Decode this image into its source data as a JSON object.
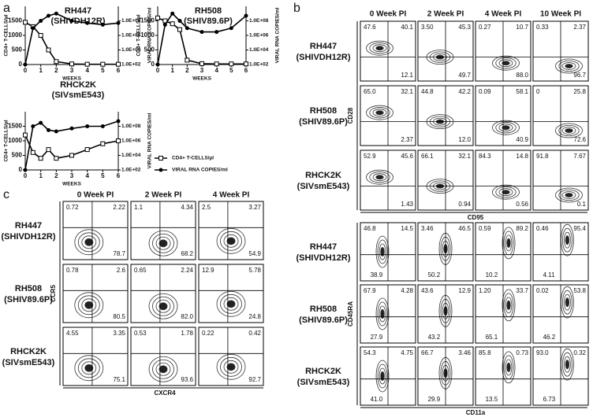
{
  "panel_labels": [
    "a",
    "b",
    "c"
  ],
  "chart_data": [
    {
      "type": "line",
      "title": "RH447",
      "subtitle": "(SHIVDH12R)",
      "xlabel": "WEEKS",
      "ylabel": "CD4+ T-CELLS/µl",
      "y2label": "VIRAL RNA COPIES/ml",
      "x": [
        0,
        0.5,
        1,
        1.5,
        2,
        3,
        4,
        5,
        6
      ],
      "xlim": [
        0,
        6
      ],
      "xticks": [
        0,
        1,
        2,
        3,
        4,
        5,
        6
      ],
      "ylim": [
        0,
        2000
      ],
      "yticks": [
        0,
        500,
        1000,
        1500
      ],
      "y2lim": [
        100,
        10000000000
      ],
      "y2log": true,
      "y2ticks": [
        {
          "value": 100,
          "label": "1.0E+02"
        },
        {
          "value": 10000,
          "label": "1.0E+04"
        },
        {
          "value": 1000000,
          "label": "1.0E+06"
        },
        {
          "value": 100000000,
          "label": "1.0E+08"
        }
      ],
      "series": [
        {
          "marker": "open-square",
          "color": "#000000",
          "values": [
            1450,
            1300,
            1000,
            500,
            100,
            20,
            10,
            10,
            10
          ]
        },
        {
          "marker": "filled-circle",
          "color": "#000000",
          "axis": "y2",
          "values": [
            100,
            10000000,
            100000000,
            500000000,
            1000000000,
            100000000,
            50000000,
            30000000,
            50000000
          ]
        }
      ]
    },
    {
      "type": "line",
      "title": "RH508",
      "subtitle": "(SHIV89.6P)",
      "xlabel": "WEEKS",
      "ylabel": "CD4+ T-CELLS/µl",
      "y2label": "VIRAL RNA COPIES/ml",
      "x": [
        0,
        0.5,
        1,
        1.5,
        2,
        3,
        4,
        5,
        6
      ],
      "xlim": [
        0,
        6
      ],
      "xticks": [
        0,
        1,
        2,
        3,
        4,
        5,
        6
      ],
      "ylim": [
        0,
        2000
      ],
      "yticks": [
        0,
        500,
        1000,
        1500
      ],
      "y2lim": [
        100,
        10000000000
      ],
      "y2log": true,
      "y2ticks": [
        {
          "value": 100,
          "label": "1.0E+02"
        },
        {
          "value": 10000,
          "label": "1.0E+04"
        },
        {
          "value": 1000000,
          "label": "1.0E+06"
        },
        {
          "value": 100000000,
          "label": "1.0E+08"
        }
      ],
      "series": [
        {
          "marker": "open-square",
          "color": "#000000",
          "values": [
            1600,
            1500,
            1400,
            1200,
            150,
            30,
            20,
            20,
            20
          ]
        },
        {
          "marker": "filled-circle",
          "color": "#000000",
          "axis": "y2",
          "values": [
            100,
            30000000,
            1000000000,
            100000000,
            10000000,
            3000000,
            3000000,
            10000000,
            500000000
          ]
        }
      ]
    },
    {
      "type": "line",
      "title": "RHCK2K",
      "subtitle": "(SIVsmE543)",
      "xlabel": "WEEKS",
      "ylabel": "CD4+ T-CELLS/µl",
      "y2label": "VIRAL RNA COPIES/ml",
      "x": [
        0,
        0.5,
        1,
        1.5,
        2,
        3,
        4,
        5,
        6
      ],
      "xlim": [
        0,
        6
      ],
      "xticks": [
        0,
        1,
        2,
        3,
        4,
        5,
        6
      ],
      "ylim": [
        0,
        2000
      ],
      "yticks": [
        0,
        500,
        1000,
        1500
      ],
      "y2lim": [
        100,
        10000000000
      ],
      "y2log": true,
      "y2ticks": [
        {
          "value": 100,
          "label": "1.0E+02"
        },
        {
          "value": 10000,
          "label": "1.0E+04"
        },
        {
          "value": 1000000,
          "label": "1.0E+06"
        },
        {
          "value": 100000000,
          "label": "1.0E+08"
        }
      ],
      "series": [
        {
          "name": "CD4+ T-CELLS/µl",
          "marker": "open-square",
          "color": "#000000",
          "values": [
            1200,
            600,
            400,
            700,
            400,
            500,
            700,
            900,
            1000
          ]
        },
        {
          "name": "VIRAL RNA COPIES/ml",
          "marker": "filled-circle",
          "color": "#000000",
          "axis": "y2",
          "values": [
            100,
            100000000,
            300000000,
            30000000,
            20000000,
            50000000,
            100000000,
            100000000,
            500000000
          ]
        }
      ]
    }
  ],
  "flow_b_top": {
    "xlabel": "CD95",
    "ylabel": "CD28",
    "columns": [
      "0 Week PI",
      "2 Week PI",
      "4 Week PI",
      "10 Week PI"
    ],
    "rows": [
      {
        "name": "RH447",
        "virus": "(SHIVDH12R)",
        "cells": [
          {
            "ul": "47.6",
            "ur": "40.1",
            "lr": "12.1"
          },
          {
            "ul": "3.50",
            "ur": "45.3",
            "lr": "49.7"
          },
          {
            "ul": "0.27",
            "ur": "10.7",
            "lr": "88.0"
          },
          {
            "ul": "0.33",
            "ur": "2.37",
            "lr": "96.7"
          }
        ]
      },
      {
        "name": "RH508",
        "virus": "(SHIV89.6P)",
        "cells": [
          {
            "ul": "65.0",
            "ur": "32.1",
            "lr": "2.37"
          },
          {
            "ul": "44.8",
            "ur": "42.2",
            "lr": "12.0"
          },
          {
            "ul": "0.09",
            "ur": "58.1",
            "lr": "40.9"
          },
          {
            "ul": "0",
            "ur": "25.8",
            "lr": "72.6"
          }
        ]
      },
      {
        "name": "RHCK2K",
        "virus": "(SIVsmE543)",
        "cells": [
          {
            "ul": "52.9",
            "ur": "45.6",
            "lr": "1.43"
          },
          {
            "ul": "66.1",
            "ur": "32.1",
            "lr": "0.94"
          },
          {
            "ul": "84.3",
            "ur": "14.8",
            "lr": "0.56"
          },
          {
            "ul": "91.8",
            "ur": "7.67",
            "lr": "0.1"
          }
        ]
      }
    ]
  },
  "flow_b_bottom": {
    "xlabel": "CD11a",
    "ylabel": "CD45RA",
    "rows": [
      {
        "name": "RH447",
        "virus": "(SHIVDH12R)",
        "cells": [
          {
            "ul": "46.8",
            "ur": "14.5",
            "ll": "38.9"
          },
          {
            "ul": "3.46",
            "ur": "46.5",
            "ll": "50.2"
          },
          {
            "ul": "0.59",
            "ur": "89.2",
            "ll": "10.2"
          },
          {
            "ul": "0.46",
            "ur": "95.4",
            "ll": "4.11"
          }
        ]
      },
      {
        "name": "RH508",
        "virus": "(SHIV89.6P)",
        "cells": [
          {
            "ul": "67.9",
            "ur": "4.28",
            "ll": "27.9"
          },
          {
            "ul": "43.6",
            "ur": "12.9",
            "ll": "43.2"
          },
          {
            "ul": "1.20",
            "ur": "33.7",
            "ll": "65.1"
          },
          {
            "ul": "0.02",
            "ur": "53.8",
            "ll": "46.2"
          }
        ]
      },
      {
        "name": "RHCK2K",
        "virus": "(SIVsmE543)",
        "cells": [
          {
            "ul": "54.3",
            "ur": "4.75",
            "ll": "41.0"
          },
          {
            "ul": "66.7",
            "ur": "3.46",
            "ll": "29.9"
          },
          {
            "ul": "85.8",
            "ur": "0.73",
            "ll": "13.5"
          },
          {
            "ul": "93.0",
            "ur": "0.32",
            "ll": "6.73"
          }
        ]
      }
    ]
  },
  "flow_c": {
    "xlabel": "CXCR4",
    "ylabel": "CCR5",
    "columns": [
      "0 Week PI",
      "2 Week PI",
      "4 Week PI"
    ],
    "rows": [
      {
        "name": "RH447",
        "virus": "(SHIVDH12R)",
        "cells": [
          {
            "ul": "0.72",
            "ur": "2.22",
            "lr": "78.7"
          },
          {
            "ul": "1.1",
            "ur": "4.34",
            "lr": "68.2"
          },
          {
            "ul": "2.5",
            "ur": "3.27",
            "lr": "54.9"
          }
        ]
      },
      {
        "name": "RH508",
        "virus": "(SHIV89.6P)",
        "cells": [
          {
            "ul": "0.78",
            "ur": "2.6",
            "lr": "80.5"
          },
          {
            "ul": "0.65",
            "ur": "2.24",
            "lr": "82.0"
          },
          {
            "ul": "12.9",
            "ur": "5.78",
            "lr": "24.8"
          }
        ]
      },
      {
        "name": "RHCK2K",
        "virus": "(SIVsmE543)",
        "cells": [
          {
            "ul": "4.55",
            "ur": "3.35",
            "lr": "75.1"
          },
          {
            "ul": "0.53",
            "ur": "1.78",
            "lr": "93.6"
          },
          {
            "ul": "0.22",
            "ur": "0.42",
            "lr": "92.7"
          }
        ]
      }
    ]
  }
}
